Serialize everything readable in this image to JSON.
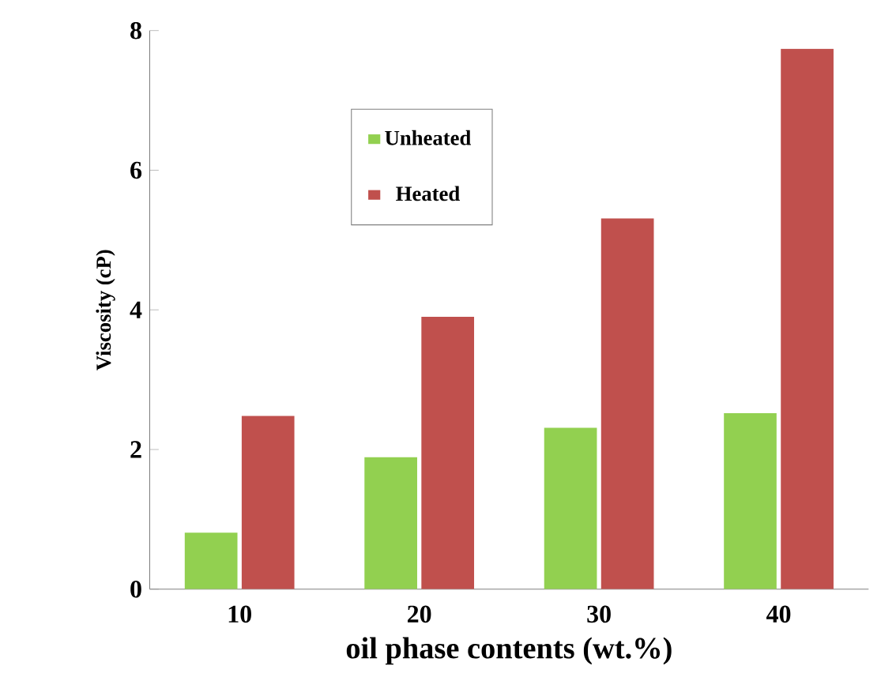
{
  "chart_data": {
    "type": "bar",
    "xlabel": "oil phase contents (wt.%)",
    "ylabel": "Viscosity (cP)",
    "categories": [
      "10",
      "20",
      "30",
      "40"
    ],
    "series": [
      {
        "name": "Unheated",
        "color": "#92d050",
        "values": [
          0.81,
          1.89,
          2.31,
          2.52
        ]
      },
      {
        "name": "Heated",
        "color": "#c0504d",
        "values": [
          2.48,
          3.9,
          5.31,
          7.74
        ]
      }
    ],
    "ylim": [
      0,
      8
    ],
    "yticks": [
      0,
      2,
      4,
      6,
      8
    ],
    "grid": false,
    "legend": "top left"
  }
}
